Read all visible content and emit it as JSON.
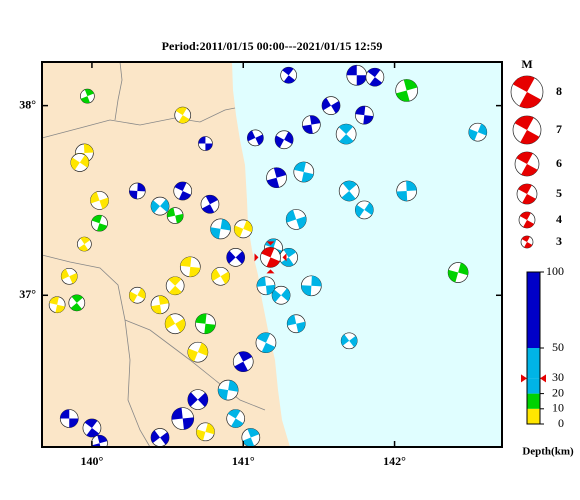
{
  "title": "Period:2011/01/15 00:00---2021/01/15 12:59",
  "map": {
    "xlim": [
      139.67,
      142.71
    ],
    "ylim": [
      36.2,
      38.23
    ],
    "xticks": [
      {
        "value": 140,
        "label": "140°"
      },
      {
        "value": 141,
        "label": "141°"
      },
      {
        "value": 142,
        "label": "142°"
      }
    ],
    "yticks": [
      {
        "value": 37,
        "label": "37°"
      },
      {
        "value": 38,
        "label": "38°"
      }
    ],
    "land_color": "#fbe6c8",
    "sea_color": "#e0feff"
  },
  "mainshock": {
    "lon": 141.18,
    "lat": 37.2,
    "mag": 5,
    "depth": 30,
    "color": "#e60000"
  },
  "events": [
    {
      "lon": 141.75,
      "lat": 38.16,
      "mag": 5,
      "depth": 60
    },
    {
      "lon": 141.87,
      "lat": 38.15,
      "mag": 4.5,
      "depth": 55
    },
    {
      "lon": 142.08,
      "lat": 38.08,
      "mag": 5.5,
      "depth": 15
    },
    {
      "lon": 142.55,
      "lat": 37.86,
      "mag": 4.5,
      "depth": 40
    },
    {
      "lon": 141.58,
      "lat": 38.0,
      "mag": 4.5,
      "depth": 60
    },
    {
      "lon": 141.8,
      "lat": 37.95,
      "mag": 4.5,
      "depth": 55
    },
    {
      "lon": 141.68,
      "lat": 37.85,
      "mag": 5,
      "depth": 45
    },
    {
      "lon": 141.45,
      "lat": 37.9,
      "mag": 4.5,
      "depth": 65
    },
    {
      "lon": 141.27,
      "lat": 37.82,
      "mag": 4.5,
      "depth": 60
    },
    {
      "lon": 141.08,
      "lat": 37.83,
      "mag": 4,
      "depth": 55
    },
    {
      "lon": 141.4,
      "lat": 37.65,
      "mag": 5,
      "depth": 40
    },
    {
      "lon": 141.7,
      "lat": 37.55,
      "mag": 5,
      "depth": 45
    },
    {
      "lon": 142.08,
      "lat": 37.55,
      "mag": 5,
      "depth": 40
    },
    {
      "lon": 141.8,
      "lat": 37.45,
      "mag": 4.5,
      "depth": 35
    },
    {
      "lon": 141.35,
      "lat": 37.4,
      "mag": 5,
      "depth": 40
    },
    {
      "lon": 141.2,
      "lat": 37.25,
      "mag": 4.5,
      "depth": 45
    },
    {
      "lon": 141.3,
      "lat": 37.2,
      "mag": 4.5,
      "depth": 40
    },
    {
      "lon": 141.45,
      "lat": 37.05,
      "mag": 5,
      "depth": 35
    },
    {
      "lon": 141.25,
      "lat": 37.0,
      "mag": 4.5,
      "depth": 50
    },
    {
      "lon": 141.35,
      "lat": 36.85,
      "mag": 4.5,
      "depth": 45
    },
    {
      "lon": 141.15,
      "lat": 36.75,
      "mag": 5,
      "depth": 40
    },
    {
      "lon": 141.0,
      "lat": 36.65,
      "mag": 5,
      "depth": 60
    },
    {
      "lon": 140.9,
      "lat": 36.5,
      "mag": 5,
      "depth": 45
    },
    {
      "lon": 140.7,
      "lat": 36.45,
      "mag": 5,
      "depth": 60
    },
    {
      "lon": 140.6,
      "lat": 36.35,
      "mag": 5.5,
      "depth": 55
    },
    {
      "lon": 140.95,
      "lat": 36.35,
      "mag": 4.5,
      "depth": 40
    },
    {
      "lon": 141.05,
      "lat": 36.25,
      "mag": 4.5,
      "depth": 45
    },
    {
      "lon": 140.75,
      "lat": 36.28,
      "mag": 4.5,
      "depth": 10
    },
    {
      "lon": 140.45,
      "lat": 36.25,
      "mag": 4.5,
      "depth": 70
    },
    {
      "lon": 139.85,
      "lat": 36.35,
      "mag": 4.5,
      "depth": 75
    },
    {
      "lon": 140.0,
      "lat": 36.3,
      "mag": 4.5,
      "depth": 65
    },
    {
      "lon": 140.05,
      "lat": 36.22,
      "mag": 4,
      "depth": 60
    },
    {
      "lon": 140.7,
      "lat": 36.7,
      "mag": 5,
      "depth": 5
    },
    {
      "lon": 140.55,
      "lat": 36.85,
      "mag": 5,
      "depth": 5
    },
    {
      "lon": 140.75,
      "lat": 36.85,
      "mag": 5,
      "depth": 15
    },
    {
      "lon": 140.55,
      "lat": 37.05,
      "mag": 4.5,
      "depth": 8
    },
    {
      "lon": 140.45,
      "lat": 36.95,
      "mag": 4.5,
      "depth": 5
    },
    {
      "lon": 140.3,
      "lat": 37.0,
      "mag": 4,
      "depth": 5
    },
    {
      "lon": 139.85,
      "lat": 37.1,
      "mag": 4,
      "depth": 8
    },
    {
      "lon": 139.77,
      "lat": 36.95,
      "mag": 4,
      "depth": 5
    },
    {
      "lon": 139.9,
      "lat": 36.96,
      "mag": 4,
      "depth": 12
    },
    {
      "lon": 139.95,
      "lat": 37.75,
      "mag": 4.5,
      "depth": 5
    },
    {
      "lon": 139.92,
      "lat": 37.7,
      "mag": 4.5,
      "depth": 6
    },
    {
      "lon": 140.05,
      "lat": 37.5,
      "mag": 4.5,
      "depth": 5
    },
    {
      "lon": 140.05,
      "lat": 37.38,
      "mag": 4,
      "depth": 15
    },
    {
      "lon": 139.95,
      "lat": 37.27,
      "mag": 3.5,
      "depth": 5
    },
    {
      "lon": 140.3,
      "lat": 37.55,
      "mag": 4,
      "depth": 60
    },
    {
      "lon": 140.45,
      "lat": 37.47,
      "mag": 4.5,
      "depth": 50
    },
    {
      "lon": 140.55,
      "lat": 37.42,
      "mag": 4,
      "depth": 12
    },
    {
      "lon": 140.6,
      "lat": 37.55,
      "mag": 4.5,
      "depth": 60
    },
    {
      "lon": 140.78,
      "lat": 37.48,
      "mag": 4.5,
      "depth": 55
    },
    {
      "lon": 140.85,
      "lat": 37.35,
      "mag": 5,
      "depth": 50
    },
    {
      "lon": 140.95,
      "lat": 37.2,
      "mag": 4.5,
      "depth": 60
    },
    {
      "lon": 141.15,
      "lat": 37.05,
      "mag": 4.5,
      "depth": 35
    },
    {
      "lon": 140.6,
      "lat": 37.95,
      "mag": 4,
      "depth": 5
    },
    {
      "lon": 139.97,
      "lat": 38.05,
      "mag": 3.5,
      "depth": 15
    },
    {
      "lon": 142.42,
      "lat": 37.12,
      "mag": 5,
      "depth": 15
    },
    {
      "lon": 141.7,
      "lat": 36.76,
      "mag": 4,
      "depth": 35
    },
    {
      "lon": 140.75,
      "lat": 37.8,
      "mag": 3.5,
      "depth": 60
    },
    {
      "lon": 141.3,
      "lat": 38.16,
      "mag": 4,
      "depth": 65
    },
    {
      "lon": 141.22,
      "lat": 37.62,
      "mag": 5,
      "depth": 60
    },
    {
      "lon": 141.0,
      "lat": 37.35,
      "mag": 4.5,
      "depth": 5
    },
    {
      "lon": 140.85,
      "lat": 37.1,
      "mag": 4.5,
      "depth": 10
    },
    {
      "lon": 140.65,
      "lat": 37.15,
      "mag": 5,
      "depth": 10
    }
  ],
  "magnitude_legend": {
    "title": "M",
    "magnitudes": [
      8,
      7,
      6,
      5,
      4,
      3
    ],
    "color": "#e60000"
  },
  "depth_scale": {
    "label": "Depth(km)",
    "lim": [
      0,
      100
    ],
    "ticks": [
      0,
      10,
      20,
      30,
      50,
      100
    ],
    "colors": [
      "#ffe600",
      "#00d200",
      "#00b4e6",
      "#00b4e6",
      "#0000c8"
    ]
  }
}
